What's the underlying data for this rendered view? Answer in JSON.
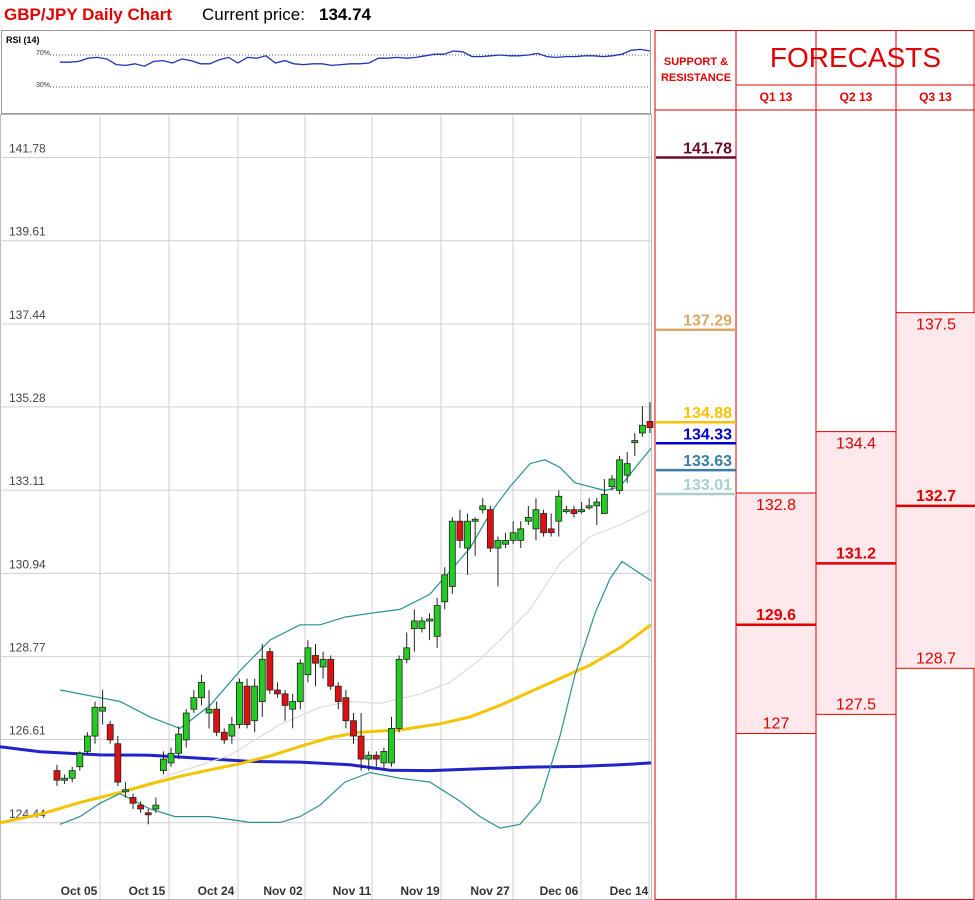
{
  "header": {
    "title": "GBP/JPY Daily Chart",
    "price_label": "Current price:",
    "price_value": "134.74"
  },
  "rsi": {
    "title": "RSI (14)",
    "levels": [
      "70%",
      "30%"
    ],
    "values": [
      61,
      61,
      62,
      66,
      67,
      65,
      58,
      57,
      59,
      56,
      62,
      63,
      60,
      65,
      63,
      59,
      59,
      64,
      67,
      60,
      67,
      66,
      69,
      60,
      63,
      59,
      58,
      59,
      59,
      57,
      58,
      59,
      59,
      60,
      66,
      66,
      67,
      66,
      67,
      69,
      71,
      71,
      75,
      74,
      68,
      68,
      69,
      70,
      69,
      69,
      70,
      72,
      68,
      67,
      68,
      68,
      69,
      69,
      68,
      69,
      71,
      76,
      77,
      75
    ]
  },
  "forecasts": {
    "sr_header": "SUPPORT & RESISTANCE",
    "title": "FORECASTS",
    "quarters": [
      {
        "label": "Q1 13",
        "high": "132.8",
        "mid": "129.6",
        "low": "127"
      },
      {
        "label": "Q2 13",
        "high": "134.4",
        "mid": "131.2",
        "low": "127.5"
      },
      {
        "label": "Q3 13",
        "high": "137.5",
        "mid": "132.7",
        "low": "128.7"
      }
    ]
  },
  "chart_data": {
    "type": "candlestick",
    "title": "GBP/JPY Daily Chart",
    "yticks": [
      "141.78",
      "139.61",
      "137.44",
      "135.28",
      "133.11",
      "130.94",
      "128.77",
      "126.61",
      "124.44"
    ],
    "ylim": [
      123.6,
      142.6
    ],
    "xticks": [
      "Oct 05",
      "Oct 15",
      "Oct 24",
      "Nov 02",
      "Nov 11",
      "Nov 19",
      "Nov 27",
      "Dec 06",
      "Dec 14"
    ],
    "grid": true,
    "candles": [
      [
        125.8,
        125.55,
        125.95,
        125.4
      ],
      [
        125.55,
        125.6,
        125.7,
        125.45
      ],
      [
        125.6,
        125.8,
        125.9,
        125.5
      ],
      [
        125.9,
        126.25,
        126.3,
        125.8
      ],
      [
        126.3,
        126.7,
        126.8,
        126.2
      ],
      [
        126.7,
        127.45,
        127.6,
        126.5
      ],
      [
        127.35,
        127.45,
        127.9,
        127.0
      ],
      [
        127.0,
        126.6,
        127.1,
        126.5
      ],
      [
        126.5,
        125.5,
        126.7,
        125.4
      ],
      [
        125.3,
        125.3,
        125.5,
        125.1
      ],
      [
        125.1,
        124.95,
        125.2,
        124.8
      ],
      [
        124.9,
        124.8,
        125.0,
        124.7
      ],
      [
        124.7,
        124.65,
        124.8,
        124.4
      ],
      [
        124.8,
        124.9,
        125.1,
        124.7
      ],
      [
        125.8,
        126.1,
        126.3,
        125.7
      ],
      [
        126.0,
        126.25,
        126.4,
        125.9
      ],
      [
        126.25,
        126.75,
        126.95,
        126.1
      ],
      [
        126.6,
        127.3,
        127.4,
        126.4
      ],
      [
        127.4,
        127.7,
        127.9,
        127.3
      ],
      [
        127.7,
        128.1,
        128.3,
        127.5
      ],
      [
        127.3,
        127.4,
        127.9,
        126.9
      ],
      [
        127.4,
        126.8,
        127.6,
        126.7
      ],
      [
        126.8,
        126.6,
        126.9,
        126.5
      ],
      [
        126.7,
        127.0,
        127.2,
        126.5
      ],
      [
        127.0,
        128.1,
        128.2,
        126.9
      ],
      [
        128.0,
        127.0,
        128.2,
        126.9
      ],
      [
        127.1,
        128.0,
        128.2,
        126.8
      ],
      [
        127.6,
        128.7,
        129.1,
        127.2
      ],
      [
        128.9,
        127.9,
        129.0,
        127.8
      ],
      [
        127.9,
        127.8,
        128.1,
        127.7
      ],
      [
        127.8,
        127.5,
        127.9,
        127.1
      ],
      [
        127.4,
        127.6,
        127.8,
        126.9
      ],
      [
        127.6,
        128.6,
        128.7,
        127.4
      ],
      [
        128.3,
        129.0,
        129.2,
        128.1
      ],
      [
        128.8,
        128.6,
        129.1,
        128.0
      ],
      [
        128.5,
        128.7,
        128.9,
        128.2
      ],
      [
        128.7,
        128.0,
        128.8,
        127.9
      ],
      [
        128.0,
        127.6,
        128.1,
        127.4
      ],
      [
        127.7,
        127.1,
        127.9,
        126.9
      ],
      [
        127.1,
        126.7,
        127.3,
        126.5
      ],
      [
        126.7,
        126.1,
        127.3,
        125.8
      ],
      [
        126.1,
        126.2,
        126.3,
        125.8
      ],
      [
        126.2,
        126.1,
        126.3,
        125.9
      ],
      [
        126.0,
        126.3,
        126.4,
        125.8
      ],
      [
        126.0,
        126.9,
        127.2,
        125.9
      ],
      [
        126.9,
        128.7,
        128.8,
        126.8
      ],
      [
        128.7,
        129.0,
        129.4,
        128.6
      ],
      [
        129.5,
        129.7,
        130.0,
        128.9
      ],
      [
        129.5,
        129.7,
        129.8,
        129.4
      ],
      [
        129.7,
        129.75,
        129.9,
        129.2
      ],
      [
        129.3,
        130.1,
        130.3,
        129.0
      ],
      [
        130.2,
        130.9,
        131.1,
        130.0
      ],
      [
        130.6,
        132.3,
        132.4,
        130.4
      ],
      [
        132.3,
        131.8,
        132.6,
        131.6
      ],
      [
        131.6,
        132.3,
        132.5,
        130.9
      ],
      [
        132.3,
        132.35,
        132.4,
        131.4
      ],
      [
        132.6,
        132.7,
        132.9,
        132.5
      ],
      [
        132.6,
        131.6,
        132.7,
        131.5
      ],
      [
        131.6,
        131.8,
        131.9,
        130.6
      ],
      [
        131.7,
        131.8,
        132.0,
        131.6
      ],
      [
        131.8,
        132.0,
        132.3,
        131.7
      ],
      [
        131.8,
        132.1,
        132.3,
        131.6
      ],
      [
        132.3,
        132.4,
        132.7,
        132.2
      ],
      [
        132.1,
        132.6,
        132.9,
        131.8
      ],
      [
        132.5,
        132.0,
        132.6,
        131.9
      ],
      [
        132.1,
        132.0,
        132.5,
        131.9
      ],
      [
        132.3,
        132.95,
        133.1,
        131.9
      ],
      [
        132.6,
        132.6,
        132.7,
        132.5
      ],
      [
        132.6,
        132.5,
        132.7,
        132.4
      ],
      [
        132.6,
        132.6,
        132.8,
        132.5
      ],
      [
        132.7,
        132.7,
        132.9,
        132.6
      ],
      [
        132.7,
        132.8,
        132.9,
        132.2
      ],
      [
        132.5,
        133.0,
        133.4,
        132.5
      ],
      [
        133.2,
        133.4,
        133.5,
        133.1
      ],
      [
        133.1,
        133.9,
        134.0,
        133.0
      ],
      [
        133.5,
        133.8,
        134.1,
        133.3
      ],
      [
        134.4,
        134.4,
        134.6,
        134.0
      ],
      [
        134.6,
        134.8,
        135.3,
        134.5
      ],
      [
        134.9,
        134.74,
        135.4,
        134.6
      ]
    ],
    "series": [
      {
        "type": "line",
        "color": "#2222cc",
        "values": [
          [
            0,
            126.42
          ],
          [
            40,
            126.29
          ],
          [
            100,
            126.21
          ],
          [
            150,
            126.2
          ],
          [
            200,
            126.12
          ],
          [
            250,
            126.04
          ],
          [
            300,
            126.02
          ],
          [
            350,
            125.95
          ],
          [
            390,
            125.81
          ],
          [
            430,
            125.8
          ],
          [
            480,
            125.85
          ],
          [
            530,
            125.89
          ],
          [
            580,
            125.91
          ],
          [
            620,
            125.95
          ],
          [
            651,
            126.0
          ]
        ]
      },
      {
        "type": "line",
        "color": "#f5c400",
        "values": [
          [
            0,
            124.44
          ],
          [
            40,
            124.66
          ],
          [
            80,
            124.97
          ],
          [
            120,
            125.23
          ],
          [
            150,
            125.45
          ],
          [
            180,
            125.65
          ],
          [
            210,
            125.82
          ],
          [
            240,
            125.98
          ],
          [
            270,
            126.18
          ],
          [
            300,
            126.43
          ],
          [
            330,
            126.66
          ],
          [
            360,
            126.8
          ],
          [
            400,
            126.86
          ],
          [
            440,
            127.02
          ],
          [
            470,
            127.2
          ],
          [
            500,
            127.5
          ],
          [
            530,
            127.85
          ],
          [
            560,
            128.2
          ],
          [
            590,
            128.55
          ],
          [
            620,
            129.0
          ],
          [
            651,
            129.6
          ]
        ]
      },
      {
        "type": "line",
        "color": "#2a9090",
        "values": [
          [
            60,
            127.9
          ],
          [
            100,
            127.7
          ],
          [
            120,
            127.6
          ],
          [
            150,
            127.2
          ],
          [
            180,
            126.9
          ],
          [
            210,
            127.5
          ],
          [
            240,
            128.4
          ],
          [
            270,
            129.2
          ],
          [
            300,
            129.6
          ],
          [
            320,
            129.6
          ],
          [
            345,
            129.8
          ],
          [
            370,
            129.9
          ],
          [
            400,
            130.0
          ],
          [
            430,
            130.4
          ],
          [
            450,
            131.0
          ],
          [
            470,
            131.6
          ],
          [
            490,
            132.5
          ],
          [
            510,
            133.2
          ],
          [
            530,
            133.8
          ],
          [
            545,
            133.9
          ],
          [
            560,
            133.7
          ],
          [
            575,
            133.3
          ],
          [
            590,
            133.2
          ],
          [
            605,
            133.1
          ],
          [
            620,
            133.2
          ],
          [
            651,
            134.2
          ]
        ]
      },
      {
        "type": "line",
        "color": "#2a9090",
        "values": [
          [
            60,
            124.4
          ],
          [
            80,
            124.6
          ],
          [
            100,
            124.95
          ],
          [
            120,
            125.2
          ],
          [
            150,
            124.8
          ],
          [
            175,
            124.6
          ],
          [
            210,
            124.6
          ],
          [
            250,
            124.45
          ],
          [
            280,
            124.45
          ],
          [
            300,
            124.6
          ],
          [
            320,
            124.9
          ],
          [
            345,
            125.5
          ],
          [
            370,
            125.75
          ],
          [
            400,
            125.6
          ],
          [
            430,
            125.5
          ],
          [
            460,
            125.0
          ],
          [
            480,
            124.6
          ],
          [
            500,
            124.3
          ],
          [
            520,
            124.4
          ],
          [
            540,
            125.0
          ],
          [
            560,
            126.7
          ],
          [
            575,
            128.3
          ],
          [
            595,
            129.9
          ],
          [
            610,
            130.8
          ],
          [
            622,
            131.25
          ],
          [
            651,
            130.75
          ]
        ]
      },
      {
        "type": "line",
        "color": "#dcdcdc",
        "values": [
          [
            160,
            125.6
          ],
          [
            230,
            126.2
          ],
          [
            280,
            127.0
          ],
          [
            320,
            127.45
          ],
          [
            350,
            127.6
          ],
          [
            380,
            127.55
          ],
          [
            420,
            127.8
          ],
          [
            450,
            128.1
          ],
          [
            480,
            128.7
          ],
          [
            500,
            129.2
          ],
          [
            530,
            130.0
          ],
          [
            560,
            131.2
          ],
          [
            590,
            131.9
          ],
          [
            620,
            132.2
          ],
          [
            651,
            132.6
          ]
        ]
      }
    ]
  },
  "support_resistance": [
    {
      "value": "141.78",
      "color": "#6b0a2a"
    },
    {
      "value": "137.29",
      "color": "#d9a96a"
    },
    {
      "value": "134.88",
      "color": "#f5c400"
    },
    {
      "value": "134.33",
      "color": "#0000cc"
    },
    {
      "value": "133.63",
      "color": "#3b7ea1"
    },
    {
      "value": "133.01",
      "color": "#a7d0cc"
    }
  ]
}
